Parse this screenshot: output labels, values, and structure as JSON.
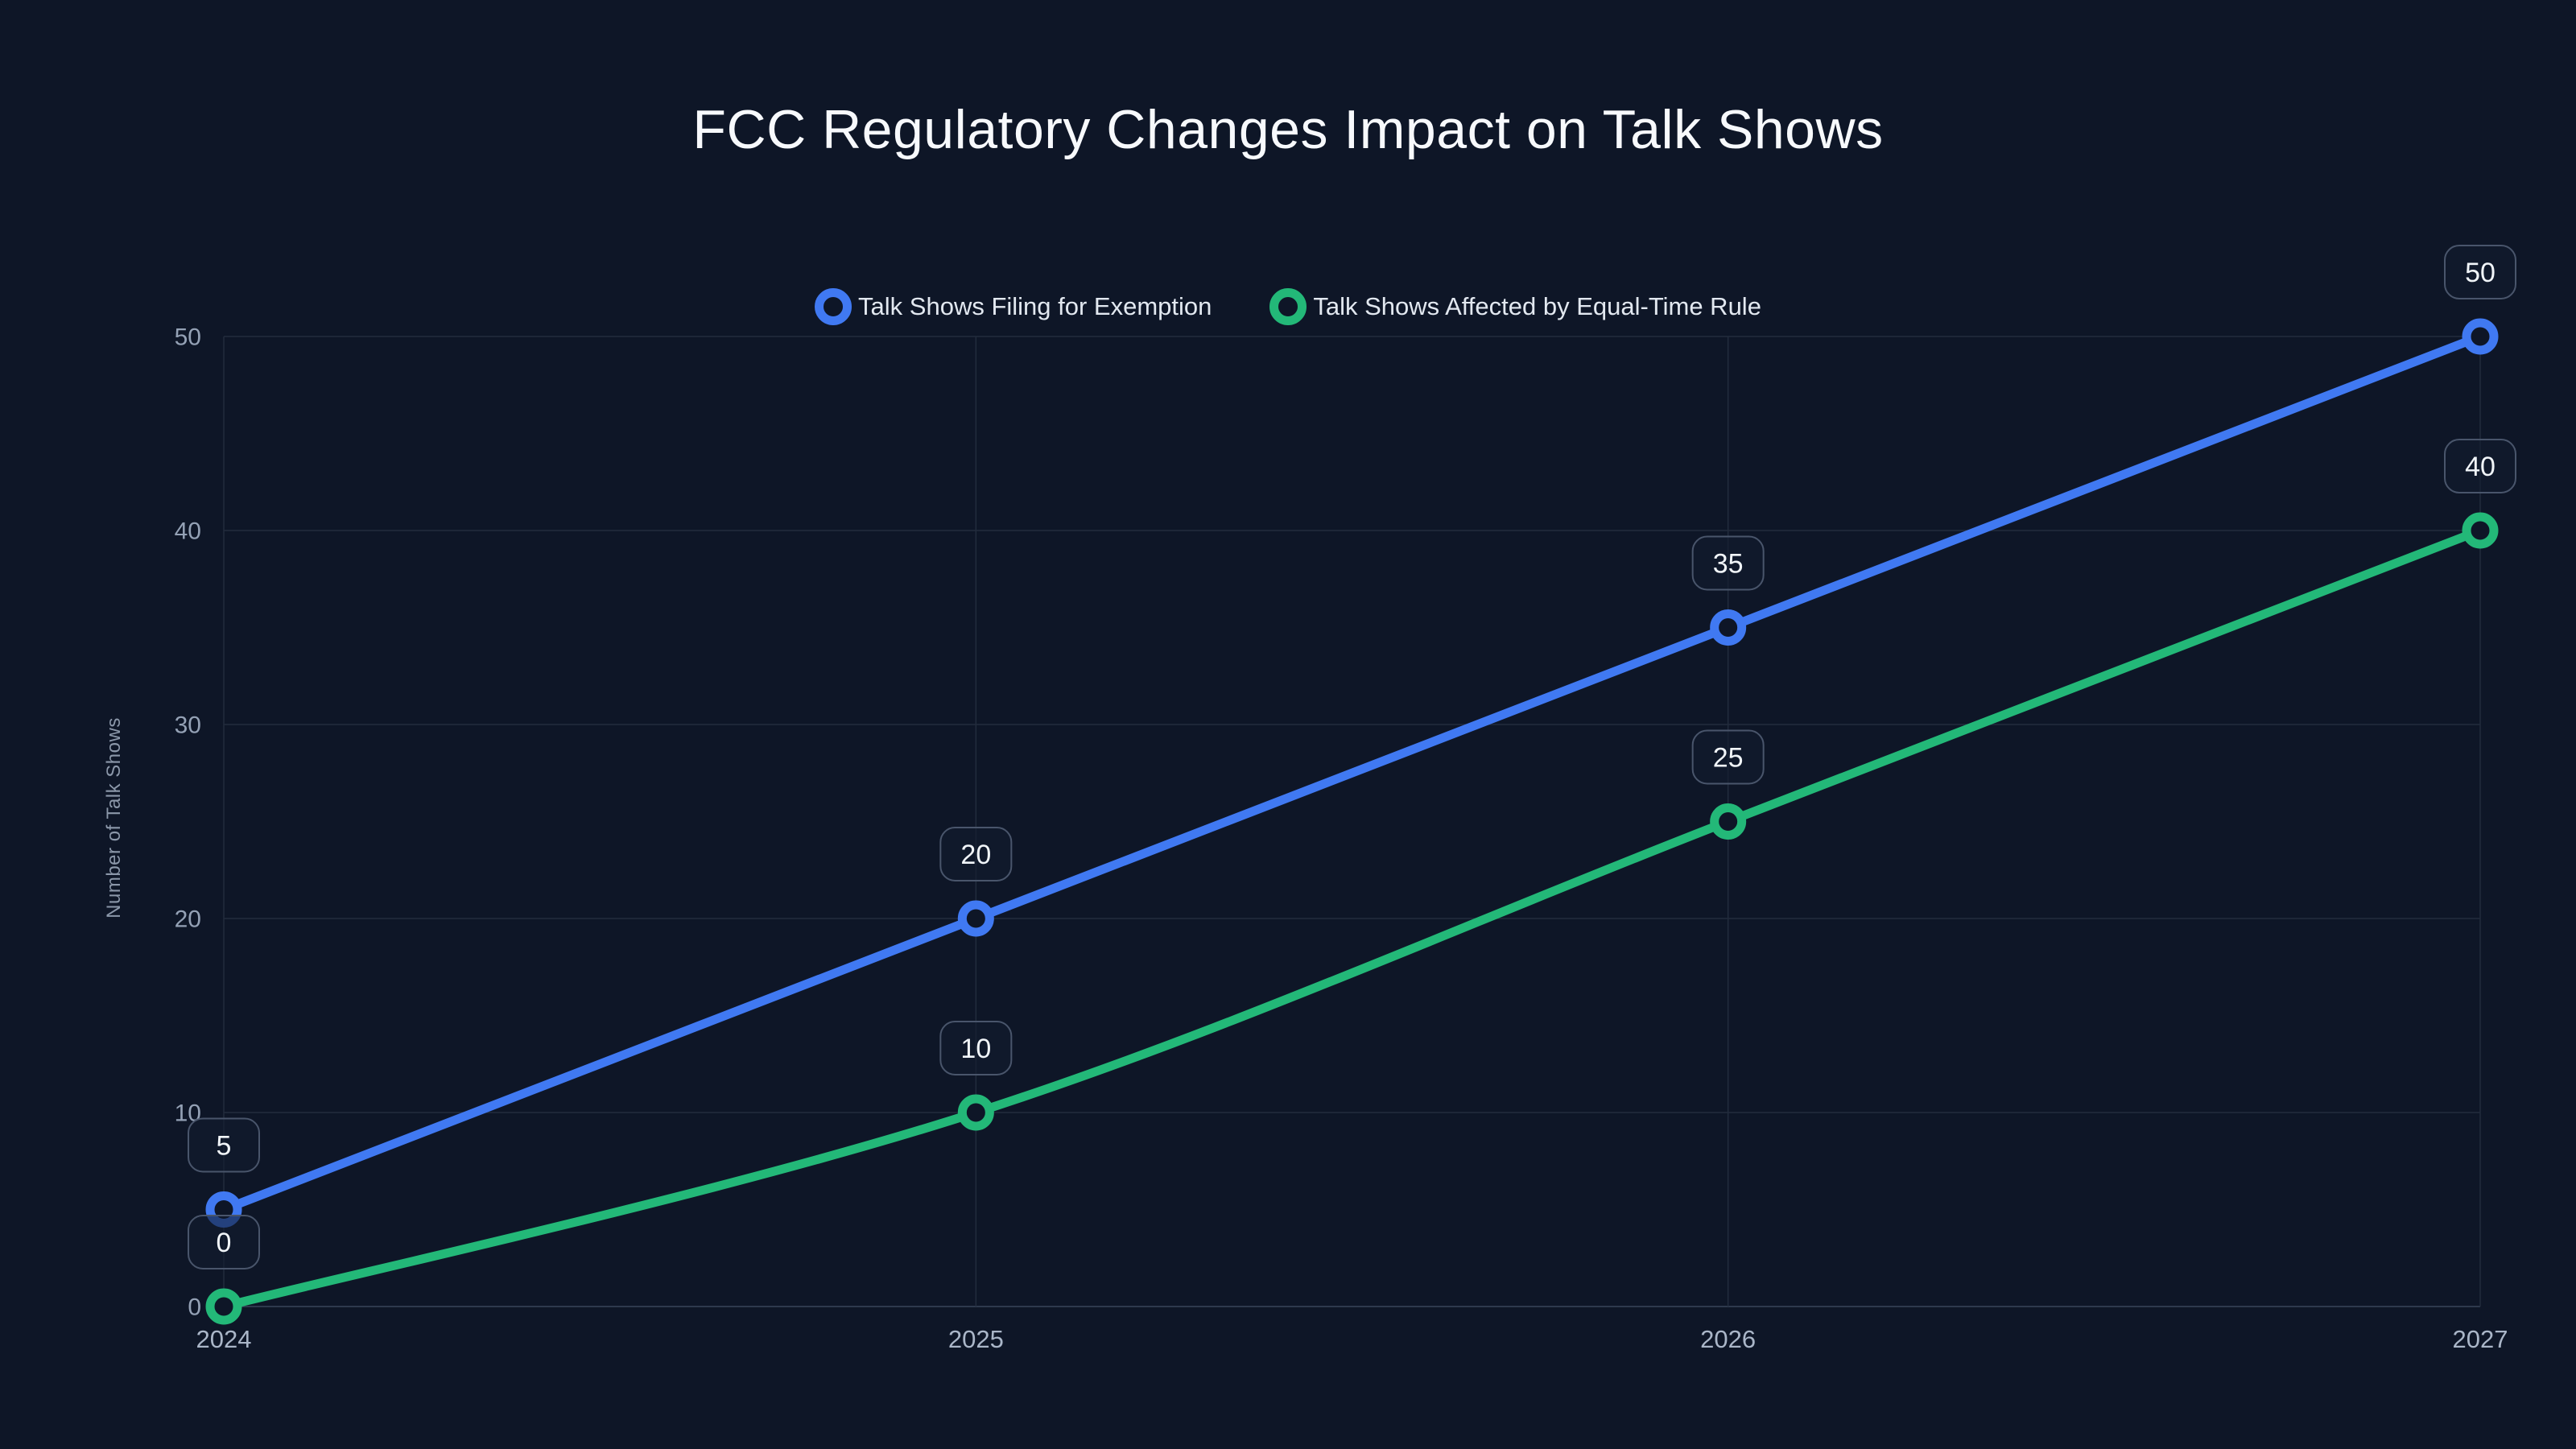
{
  "title": "FCC Regulatory Changes Impact on Talk Shows",
  "chart_data": {
    "type": "line",
    "title": "FCC Regulatory Changes Impact on Talk Shows",
    "ylabel": "Number of Talk Shows",
    "categories": [
      "2024",
      "2025",
      "2026",
      "2027"
    ],
    "yticks": [
      0,
      10,
      20,
      30,
      40,
      50
    ],
    "ylim": [
      0,
      50
    ],
    "grid": true,
    "legend_position": "top-center",
    "point_labels": true,
    "series": [
      {
        "name": "Talk Shows Filing for Exemption",
        "color": "#4079f2",
        "values": [
          5,
          20,
          35,
          50
        ]
      },
      {
        "name": "Talk Shows Affected by Equal-Time Rule",
        "color": "#23b878",
        "values": [
          0,
          10,
          25,
          40
        ]
      }
    ]
  },
  "colors": {
    "background": "#0e1627",
    "grid": "#222c3d",
    "axis_line": "#39455a",
    "y_tick_text": "#94a1b5",
    "x_tick_text": "#aab6c8",
    "title_text": "#f7f9fc",
    "legend_text": "#e2e8f0",
    "point_label_box_border": "#49556b",
    "point_label_box_fill": "#121c2f",
    "point_label_text": "#f1f5f9",
    "series_blue": "#4079f2",
    "series_green": "#23b878"
  }
}
